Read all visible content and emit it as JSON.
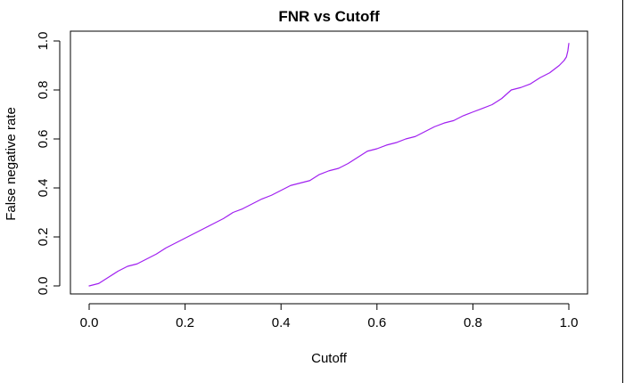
{
  "chart_data": {
    "type": "line",
    "title": "FNR vs Cutoff",
    "xlabel": "Cutoff",
    "ylabel": "False negative rate",
    "xlim": [
      0.0,
      1.0
    ],
    "ylim": [
      0.0,
      1.0
    ],
    "x_ticks": [
      "0.0",
      "0.2",
      "0.4",
      "0.6",
      "0.8",
      "1.0"
    ],
    "y_ticks": [
      "0.0",
      "0.2",
      "0.4",
      "0.6",
      "0.8",
      "1.0"
    ],
    "grid": false,
    "legend": "none",
    "series": [
      {
        "color": "#a020f0",
        "x": [
          0.0,
          0.02,
          0.04,
          0.06,
          0.08,
          0.1,
          0.12,
          0.14,
          0.16,
          0.18,
          0.2,
          0.22,
          0.24,
          0.26,
          0.28,
          0.3,
          0.32,
          0.34,
          0.36,
          0.38,
          0.4,
          0.42,
          0.44,
          0.46,
          0.48,
          0.5,
          0.52,
          0.54,
          0.56,
          0.58,
          0.6,
          0.62,
          0.64,
          0.66,
          0.68,
          0.7,
          0.72,
          0.74,
          0.76,
          0.78,
          0.8,
          0.82,
          0.84,
          0.86,
          0.88,
          0.9,
          0.92,
          0.94,
          0.95,
          0.96,
          0.97,
          0.98,
          0.985,
          0.99,
          0.995,
          0.998,
          1.0
        ],
        "y": [
          0.0,
          0.01,
          0.035,
          0.06,
          0.08,
          0.09,
          0.11,
          0.13,
          0.155,
          0.175,
          0.195,
          0.215,
          0.235,
          0.255,
          0.275,
          0.3,
          0.315,
          0.335,
          0.355,
          0.37,
          0.39,
          0.41,
          0.42,
          0.43,
          0.455,
          0.47,
          0.48,
          0.5,
          0.525,
          0.55,
          0.56,
          0.575,
          0.585,
          0.6,
          0.61,
          0.63,
          0.65,
          0.665,
          0.675,
          0.695,
          0.71,
          0.725,
          0.74,
          0.765,
          0.8,
          0.81,
          0.825,
          0.85,
          0.86,
          0.87,
          0.885,
          0.9,
          0.91,
          0.92,
          0.935,
          0.96,
          0.99
        ]
      }
    ]
  }
}
